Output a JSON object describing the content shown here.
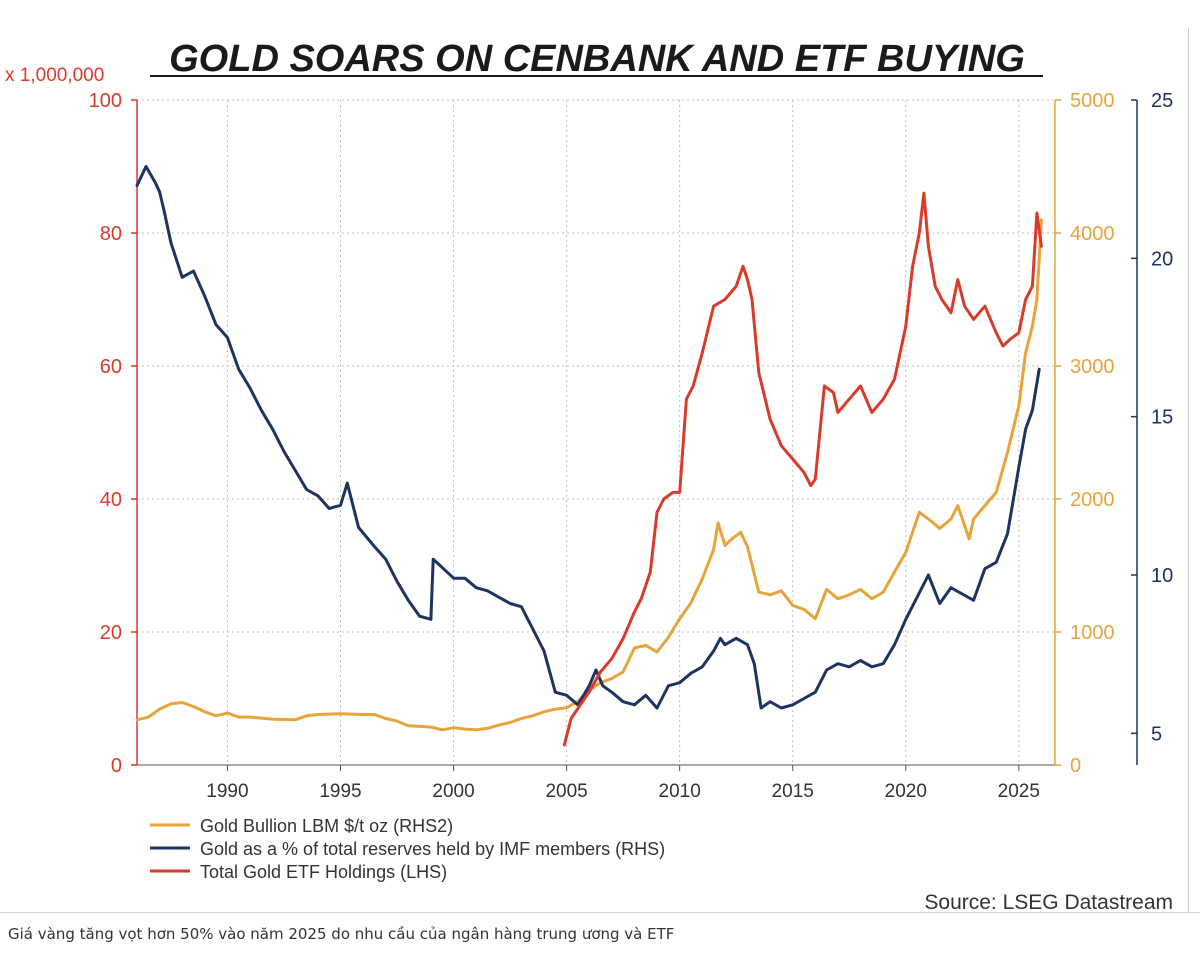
{
  "chart_data": {
    "type": "line",
    "title": "GOLD SOARS ON CENBANK AND ETF BUYING",
    "lhs_multiplier": "x 1,000,000",
    "source": "Source: LSEG Datastream",
    "colors": {
      "gold_price": "#e8a33b",
      "imf_share": "#1d3461",
      "etf": "#d93b2b",
      "grid": "#bfbfbf",
      "left_axis": "#d93b2b",
      "right_axis": "#e8a33b",
      "far_right_axis": "#1d3461"
    },
    "x_axis": {
      "range": [
        1986,
        2026.6
      ],
      "ticks": [
        1990,
        1995,
        2000,
        2005,
        2010,
        2015,
        2020,
        2025
      ],
      "tick_labels": [
        "1990",
        "1995",
        "2000",
        "2005",
        "2010",
        "2015",
        "2020",
        "2025"
      ]
    },
    "axes": {
      "lhs": {
        "range": [
          0,
          100
        ],
        "ticks": [
          0,
          20,
          40,
          60,
          80,
          100
        ],
        "tick_labels": [
          "0",
          "20",
          "40",
          "60",
          "80",
          "100"
        ]
      },
      "rhs2": {
        "range": [
          0,
          5000
        ],
        "ticks": [
          0,
          1000,
          2000,
          3000,
          4000,
          5000
        ],
        "tick_labels": [
          "0",
          "1000",
          "2000",
          "3000",
          "4000",
          "5000"
        ]
      },
      "rhs": {
        "range": [
          4,
          25
        ],
        "ticks": [
          5,
          10,
          15,
          20,
          25
        ],
        "tick_labels": [
          "5",
          "10",
          "15",
          "20",
          "25"
        ]
      }
    },
    "series": [
      {
        "id": "gold_price",
        "name": "Gold Bullion LBM $/t oz (RHS2)",
        "axis": "rhs2",
        "x": [
          1986,
          1986.5,
          1987,
          1987.5,
          1988,
          1988.5,
          1989,
          1989.5,
          1990,
          1990.5,
          1991,
          1992,
          1993,
          1993.5,
          1994,
          1995,
          1996,
          1996.5,
          1997,
          1997.5,
          1998,
          1998.5,
          1999,
          1999.5,
          2000,
          2000.5,
          2001,
          2001.5,
          2002,
          2002.5,
          2003,
          2003.5,
          2004,
          2004.5,
          2005,
          2005.5,
          2006,
          2006.5,
          2007,
          2007.5,
          2008,
          2008.5,
          2009,
          2009.5,
          2010,
          2010.5,
          2011,
          2011.5,
          2011.7,
          2012,
          2012.3,
          2012.7,
          2013,
          2013.5,
          2014,
          2014.5,
          2015,
          2015.5,
          2016,
          2016.5,
          2017,
          2017.5,
          2018,
          2018.5,
          2019,
          2019.5,
          2020,
          2020.6,
          2021,
          2021.5,
          2022,
          2022.3,
          2022.8,
          2023,
          2023.5,
          2024,
          2024.5,
          2025,
          2025.3,
          2025.6,
          2025.8,
          2026
        ],
        "y": [
          340,
          360,
          420,
          460,
          470,
          440,
          400,
          370,
          390,
          360,
          360,
          345,
          340,
          370,
          380,
          385,
          380,
          380,
          350,
          330,
          295,
          290,
          285,
          265,
          280,
          270,
          265,
          275,
          300,
          320,
          350,
          370,
          400,
          420,
          430,
          480,
          560,
          620,
          650,
          700,
          880,
          900,
          850,
          960,
          1100,
          1220,
          1400,
          1620,
          1820,
          1650,
          1700,
          1750,
          1640,
          1300,
          1280,
          1310,
          1200,
          1170,
          1100,
          1320,
          1250,
          1280,
          1320,
          1250,
          1300,
          1450,
          1600,
          1900,
          1850,
          1780,
          1850,
          1950,
          1700,
          1850,
          1950,
          2050,
          2350,
          2700,
          3100,
          3300,
          3500,
          4100
        ]
      },
      {
        "id": "imf_share",
        "name": "Gold as a % of total reserves held by IMF members (RHS)",
        "axis": "rhs",
        "x": [
          1986,
          1986.4,
          1986.8,
          1987,
          1987.2,
          1987.5,
          1988,
          1988.5,
          1989,
          1989.5,
          1990,
          1990.5,
          1991,
          1991.5,
          1992,
          1992.5,
          1993,
          1993.5,
          1994,
          1994.5,
          1995,
          1995.3,
          1995.8,
          1996.5,
          1997,
          1997.5,
          1998,
          1998.5,
          1999,
          1999.1,
          1999.4,
          1999.7,
          2000,
          2000.5,
          2001,
          2001.5,
          2002,
          2002.5,
          2003,
          2003.5,
          2004,
          2004.5,
          2005,
          2005.5,
          2006,
          2006.3,
          2006.6,
          2007,
          2007.5,
          2008,
          2008.5,
          2009,
          2009.5,
          2010,
          2010.5,
          2011,
          2011.5,
          2011.8,
          2012,
          2012.5,
          2013,
          2013.3,
          2013.6,
          2014,
          2014.5,
          2015,
          2015.5,
          2016,
          2016.5,
          2017,
          2017.5,
          2018,
          2018.5,
          2019,
          2019.5,
          2020,
          2020.5,
          2021,
          2021.5,
          2022,
          2022.5,
          2023,
          2023.5,
          2024,
          2024.5,
          2025,
          2025.3,
          2025.6,
          2025.9
        ],
        "y": [
          22.3,
          22.9,
          22.4,
          22.1,
          21.5,
          20.5,
          19.4,
          19.6,
          18.8,
          17.9,
          17.5,
          16.5,
          15.9,
          15.2,
          14.6,
          13.9,
          13.3,
          12.7,
          12.5,
          12.1,
          12.2,
          12.9,
          11.5,
          10.9,
          10.5,
          9.8,
          9.2,
          8.7,
          8.6,
          10.5,
          10.3,
          10.1,
          9.9,
          9.9,
          9.6,
          9.5,
          9.3,
          9.1,
          9.0,
          8.3,
          7.6,
          6.3,
          6.2,
          5.9,
          6.5,
          7.0,
          6.5,
          6.3,
          6.0,
          5.9,
          6.2,
          5.8,
          6.5,
          6.6,
          6.9,
          7.1,
          7.6,
          8.0,
          7.8,
          8.0,
          7.8,
          7.2,
          5.8,
          6.0,
          5.8,
          5.9,
          6.1,
          6.3,
          7.0,
          7.2,
          7.1,
          7.3,
          7.1,
          7.2,
          7.8,
          8.6,
          9.3,
          10.0,
          9.1,
          9.6,
          9.4,
          9.2,
          10.2,
          10.4,
          11.3,
          13.4,
          14.6,
          15.2,
          16.5
        ]
      },
      {
        "id": "etf",
        "name": "Total Gold ETF Holdings (LHS)",
        "axis": "lhs",
        "x": [
          2004.9,
          2005.2,
          2005.5,
          2006,
          2006.5,
          2007,
          2007.5,
          2008,
          2008.3,
          2008.7,
          2009,
          2009.3,
          2009.7,
          2010,
          2010.3,
          2010.6,
          2011,
          2011.5,
          2012,
          2012.5,
          2012.8,
          2013,
          2013.2,
          2013.5,
          2014,
          2014.5,
          2015,
          2015.5,
          2015.8,
          2016,
          2016.4,
          2016.8,
          2017,
          2017.5,
          2018,
          2018.5,
          2019,
          2019.5,
          2020,
          2020.3,
          2020.6,
          2020.8,
          2021,
          2021.3,
          2021.6,
          2022,
          2022.3,
          2022.6,
          2023,
          2023.5,
          2024,
          2024.3,
          2024.6,
          2025,
          2025.3,
          2025.6,
          2025.8,
          2026
        ],
        "y": [
          3,
          7,
          8.5,
          11,
          14,
          16,
          19,
          23,
          25,
          29,
          38,
          40,
          41,
          41,
          55,
          57,
          62,
          69,
          70,
          72,
          75,
          73,
          70,
          59,
          52,
          48,
          46,
          44,
          42,
          43,
          57,
          56,
          53,
          55,
          57,
          53,
          55,
          58,
          66,
          75,
          80,
          86,
          78,
          72,
          70,
          68,
          73,
          69,
          67,
          69,
          65,
          63,
          64,
          65,
          70,
          72,
          83,
          78
        ]
      }
    ]
  }
}
